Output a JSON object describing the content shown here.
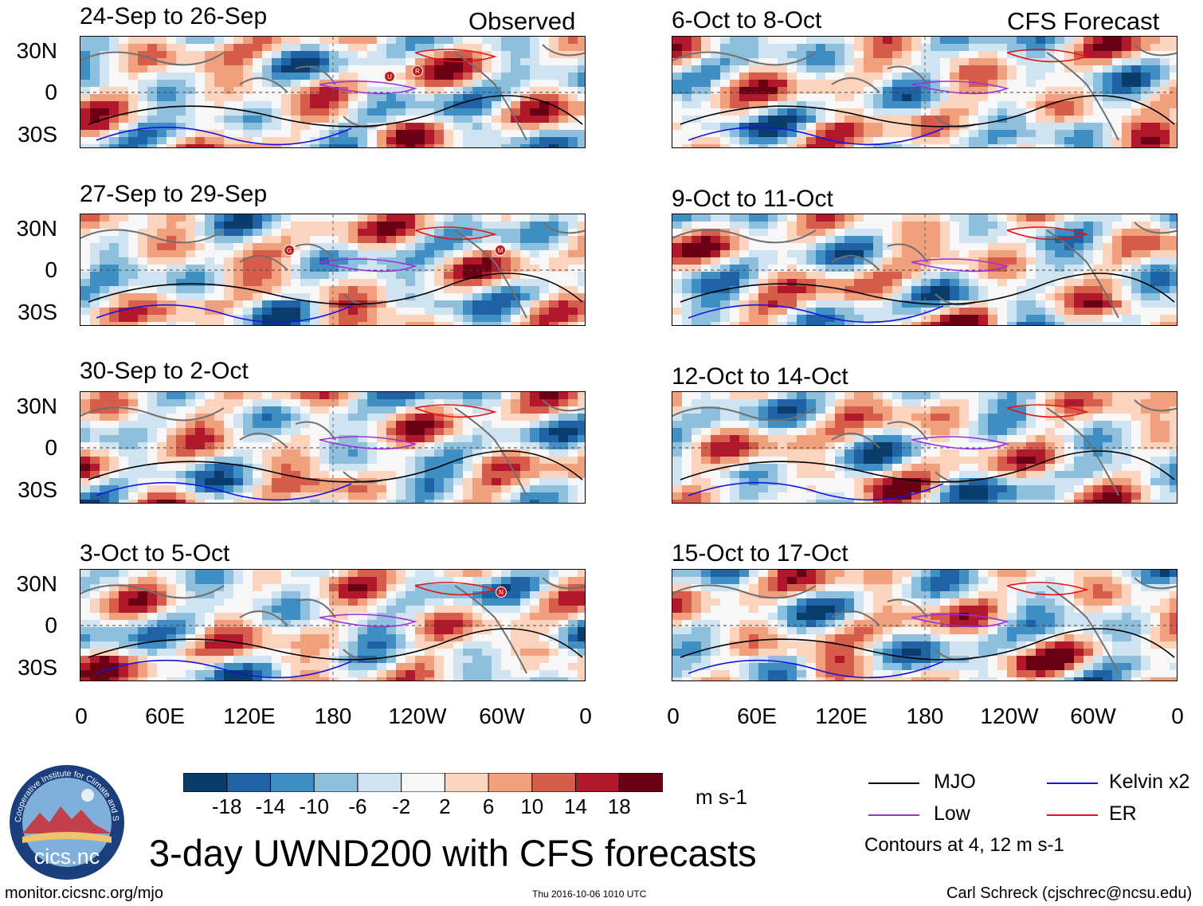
{
  "header": {
    "observed_label": "Observed",
    "forecast_label": "CFS Forecast"
  },
  "panels": {
    "observed": [
      "24-Sep to 26-Sep",
      "27-Sep to 29-Sep",
      "30-Sep to 2-Oct",
      "3-Oct to 5-Oct"
    ],
    "forecast": [
      "6-Oct to 8-Oct",
      "9-Oct to 11-Oct",
      "12-Oct to 14-Oct",
      "15-Oct to 17-Oct"
    ]
  },
  "axes": {
    "lat_ticks": [
      "30N",
      "0",
      "30S"
    ],
    "lon_ticks": [
      "0",
      "60E",
      "120E",
      "180",
      "120W",
      "60W",
      "0"
    ]
  },
  "storm_markers": {
    "panel1": [
      "U",
      "R"
    ],
    "panel2": [
      "G",
      "M"
    ],
    "panel4": [
      "N"
    ]
  },
  "colorbar": {
    "ticks": [
      "-18",
      "-14",
      "-10",
      "-6",
      "-2",
      "2",
      "6",
      "10",
      "14",
      "18"
    ],
    "colors": [
      "#0a3d6b",
      "#1f62a6",
      "#3f8fc4",
      "#8ebfdd",
      "#cfe4f0",
      "#f7f7f7",
      "#fcd3bd",
      "#f0a07c",
      "#d65c4c",
      "#b2182b",
      "#6b0014"
    ],
    "units": "m s-1"
  },
  "legend": {
    "mjo": "MJO",
    "kelvin": "Kelvin x2",
    "low": "Low",
    "er": "ER",
    "mjo_color": "#000000",
    "kelvin_color": "#1515e0",
    "low_color": "#9b30d9",
    "er_color": "#e01515",
    "contours_note": "Contours at 4, 12 m s-1"
  },
  "logo": {
    "text": "cics.nc",
    "ring_text": "Cooperative Institute for Climate and Satellites"
  },
  "footer": {
    "title": "3-day UWND200 with CFS forecasts",
    "website": "monitor.cicsnc.org/mjo",
    "timestamp": "Thu 2016-10-06 1010 UTC",
    "author": "Carl Schreck (cjschrec@ncsu.edu)"
  }
}
